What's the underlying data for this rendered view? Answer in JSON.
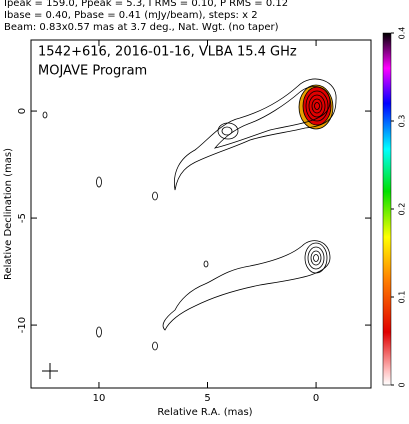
{
  "chart_data": {
    "type": "contour",
    "header": [
      "Ipeak = 159.0, Ppeak = 5.3, I RMS = 0.10, P RMS = 0.12",
      "Ibase = 0.40, Pbase = 0.41 (mJy/beam), steps: x 2",
      "Beam: 0.83x0.57 mas at 3.7 deg., Nat. Wgt. (no taper)"
    ],
    "title": "1542+616, 2016-01-16, VLBA 15.4 GHz",
    "subtitle": "MOJAVE Program",
    "x_label": "Relative R.A. (mas)",
    "y_label": "Relative Declination (mas)",
    "xlim": [
      13.13,
      -2.53
    ],
    "xticks": [
      10,
      5,
      0
    ],
    "ylim": [
      -12.94,
      3.32
    ],
    "yticks": [
      0,
      -5,
      -10
    ],
    "clim": [
      0,
      0.4
    ],
    "cticks": [
      0,
      0.1,
      0.2,
      0.3,
      0.4
    ]
  }
}
